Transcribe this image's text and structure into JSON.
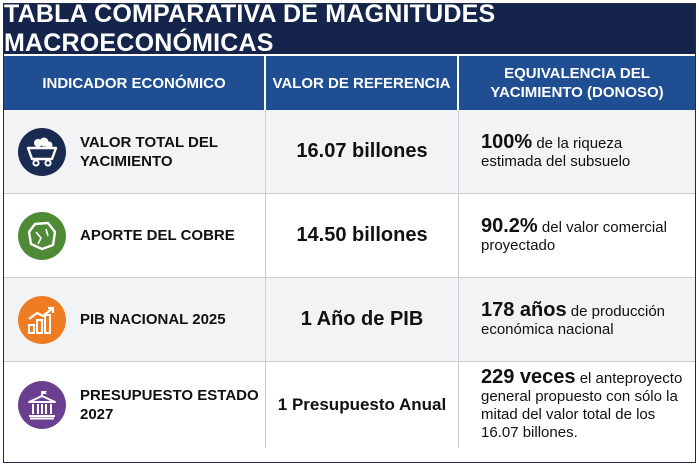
{
  "title": "TABLA COMPARATIVA DE MAGNITUDES MACROECONÓMICAS",
  "headers": {
    "indicator": "INDICADOR ECONÓMICO",
    "reference": "VALOR DE REFERENCIA",
    "equivalence": "EQUIVALENCIA DEL YACIMIENTO (DONOSO)"
  },
  "rows": [
    {
      "icon": "mining-cart-icon",
      "color": "#1a2b52",
      "indicator": "VALOR TOTAL DEL YACIMIENTO",
      "reference": "16.07 billones",
      "equiv_big": "100%",
      "equiv_text": " de la riqueza estimada del subsuelo"
    },
    {
      "icon": "copper-nugget-icon",
      "color": "#4f8a36",
      "indicator": "APORTE DEL COBRE",
      "reference": "14.50 billones",
      "equiv_big": "90.2%",
      "equiv_text": " del valor comercial proyectado"
    },
    {
      "icon": "growth-chart-icon",
      "color": "#ee7c22",
      "indicator": "PIB NACIONAL 2025",
      "reference": "1 Año de PIB",
      "equiv_big": "178 años",
      "equiv_text": " de producción económica nacional"
    },
    {
      "icon": "government-building-icon",
      "color": "#6b3f8f",
      "indicator": "PRESUPUESTO ESTADO 2027",
      "reference": "1 Presupuesto Anual",
      "equiv_big": "229 veces",
      "equiv_text": " el anteproyecto general propuesto con sólo la mitad del valor total de los 16.07 billones."
    }
  ]
}
